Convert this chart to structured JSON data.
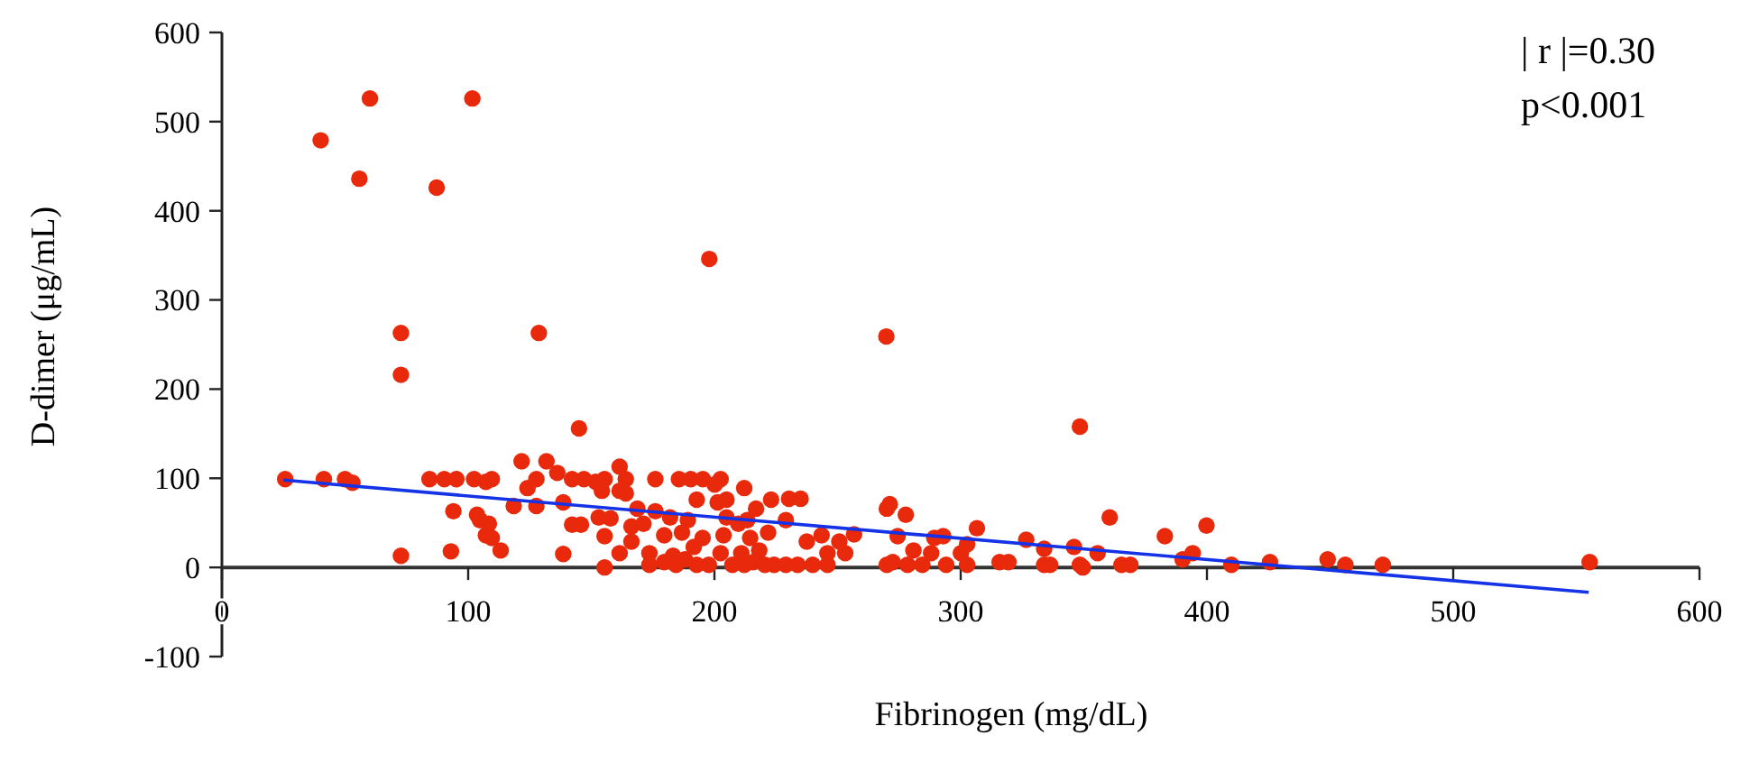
{
  "chart_data": {
    "type": "scatter",
    "xlabel": "Fibrinogen (mg/dL)",
    "ylabel": "D-dimer (μg/mL)",
    "xlim": [
      0,
      600
    ],
    "ylim": [
      -100,
      600
    ],
    "xticks": [
      0,
      100,
      200,
      300,
      400,
      500,
      600
    ],
    "yticks": [
      -100,
      0,
      100,
      200,
      300,
      400,
      500,
      600
    ],
    "grid": false,
    "marker": "circle",
    "annotations": [
      "| r |=0.30",
      "p<0.001"
    ],
    "series": [
      {
        "color": "#e8290b",
        "x": [
          60.1,
          101.7,
          40.1,
          55.8,
          87.2,
          197.9,
          72.7,
          128.7,
          269.8,
          72.7,
          145,
          348.4,
          25.7,
          41.4,
          50,
          53,
          72.7,
          84.3,
          90.3,
          95.2,
          102.4,
          107.2,
          109.6,
          94,
          93,
          103.6,
          104.8,
          108.4,
          107.2,
          109.6,
          113.2,
          121.7,
          124.1,
          127.7,
          131.8,
          136.2,
          118.5,
          127.7,
          138.6,
          138.6,
          142.2,
          147,
          151.8,
          155.4,
          161.5,
          164,
          154.3,
          161.5,
          164,
          142.2,
          145.8,
          153,
          157.8,
          155.4,
          155.4,
          161.5,
          166.3,
          166.3,
          168.7,
          171.2,
          173.6,
          173.6,
          176,
          176,
          179.6,
          182,
          185.6,
          190.4,
          195.3,
          192.8,
          189.2,
          186.8,
          183.2,
          188,
          191.6,
          195.2,
          197.7,
          202.5,
          200.1,
          201.3,
          204.9,
          204.9,
          203.7,
          202.5,
          207.3,
          209.7,
          212.1,
          213.3,
          214.5,
          216.9,
          210.9,
          215.7,
          218.2,
          221.8,
          223,
          220.5,
          229,
          230.3,
          235,
          229,
          233.8,
          237.5,
          239.9,
          243.5,
          245.9,
          250.7,
          253.1,
          256.7,
          245.9,
          270,
          270,
          179.6,
          184.4,
          192.8,
          212.1,
          224.2,
          271.2,
          277.7,
          274.4,
          272.4,
          278.4,
          280.8,
          284.4,
          288,
          289.3,
          292.9,
          294.1,
          300.1,
          302.6,
          302.6,
          306.6,
          315.8,
          319.4,
          326.6,
          333.9,
          333.9,
          336.3,
          346,
          348.4,
          349.6,
          355.6,
          360.5,
          365.3,
          368.9,
          382.9,
          390.1,
          394.2,
          399.8,
          409.9,
          425.6,
          449,
          456.2,
          471.4,
          555.4
        ],
        "values": [
          526,
          526,
          479,
          436,
          426,
          346,
          263,
          263,
          259,
          216,
          156,
          158,
          99,
          99,
          99,
          95,
          13,
          99,
          99,
          99,
          99,
          96,
          99,
          63,
          18,
          59,
          53,
          49,
          36,
          33,
          19,
          119,
          89,
          99,
          119,
          106,
          69,
          69,
          73,
          15,
          99,
          99,
          96,
          99,
          113,
          99,
          86,
          86,
          83,
          48,
          48,
          56,
          55,
          35,
          0,
          16,
          46,
          29,
          66,
          49,
          16,
          3,
          99,
          63,
          36,
          56,
          99,
          99,
          99,
          76,
          53,
          39,
          13,
          9,
          23,
          33,
          3,
          99,
          93,
          73,
          76,
          56,
          36,
          16,
          3,
          49,
          89,
          53,
          33,
          66,
          16,
          6,
          19,
          39,
          76,
          3,
          53,
          77,
          77,
          3,
          3,
          29,
          3,
          36,
          16,
          29,
          16,
          37,
          3,
          66,
          3,
          6,
          3,
          3,
          3,
          3,
          71,
          59,
          35,
          6,
          3,
          19,
          3,
          16,
          33,
          35,
          3,
          16,
          26,
          3,
          44,
          6,
          6,
          31,
          21,
          3,
          3,
          23,
          3,
          0,
          16,
          56,
          3,
          3,
          35,
          9,
          16,
          47,
          3,
          6,
          9,
          3,
          3,
          6
        ]
      },
      {
        "type": "line",
        "color": "#1432e6",
        "marker": "none",
        "x": [
          25,
          555
        ],
        "values": [
          98,
          -28
        ]
      }
    ]
  }
}
